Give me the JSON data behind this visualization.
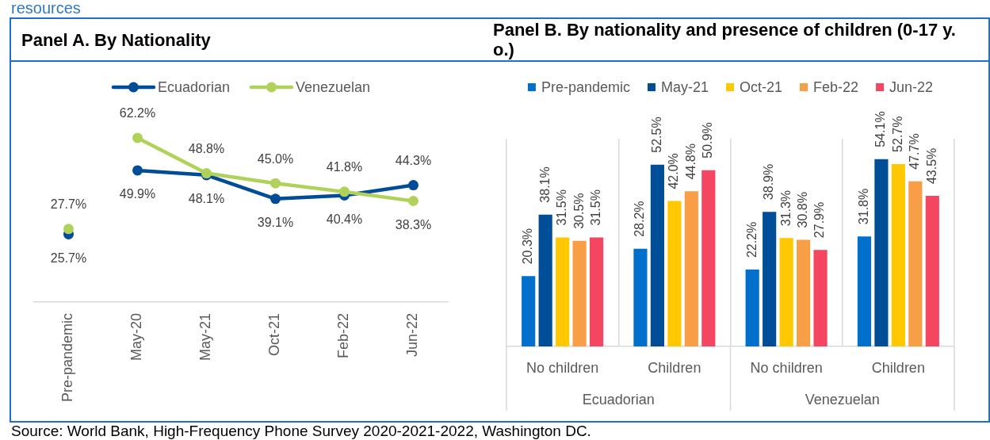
{
  "chart_data": [
    {
      "type": "line",
      "title": "Panel A. By Nationality",
      "categories": [
        "Pre-pandemic",
        "May-20",
        "May-21",
        "Oct-21",
        "Feb-22",
        "Jun-22"
      ],
      "series": [
        {
          "name": "Ecuadorian",
          "color": "#004c97",
          "values": [
            null,
            49.9,
            48.1,
            39.1,
            40.4,
            44.3
          ],
          "value_labels": [
            null,
            "49.9%",
            "48.1%",
            "39.1%",
            "40.4%",
            "44.3%"
          ]
        },
        {
          "name": "Venezuelan",
          "color": "#b0d25a",
          "values": [
            null,
            62.2,
            48.8,
            45.0,
            41.8,
            38.3
          ],
          "value_labels": [
            null,
            "62.2%",
            "48.8%",
            "45.0%",
            "41.8%",
            "38.3%"
          ]
        },
        {
          "type": "scatter",
          "color": "#004c97",
          "x": [
            "Pre-pandemic"
          ],
          "values": [
            25.7
          ],
          "value_labels": [
            "25.7%"
          ]
        },
        {
          "type": "scatter",
          "color": "#b0d25a",
          "x": [
            "Pre-pandemic"
          ],
          "values": [
            27.7
          ],
          "value_labels": [
            "27.7%"
          ]
        }
      ],
      "tick_labels": "x",
      "grid": false,
      "legend": "top",
      "marker": "circle",
      "line_style": "solid",
      "annotations": [
        "resources",
        "Source: World Bank, High-Frequency Phone Survey 2020-2021-2022, Washington DC."
      ]
    },
    {
      "type": "bar",
      "title": "Panel B. By nationality and presence of children (0-17 y. o.)",
      "categories": [
        "No children",
        "Children",
        "No children",
        "Children"
      ],
      "series": [
        {
          "name": "Pre-pandemic",
          "color": "#0070cc",
          "values": [
            20.3,
            28.2,
            22.2,
            31.8
          ],
          "value_labels": [
            "20.3%",
            "28.2%",
            "22.2%",
            "31.8%"
          ]
        },
        {
          "name": "May-21",
          "color": "#004e98",
          "values": [
            38.1,
            52.5,
            38.9,
            54.1
          ],
          "value_labels": [
            "38.1%",
            "52.5%",
            "38.9%",
            "54.1%"
          ]
        },
        {
          "name": "Oct-21",
          "color": "#ffc800",
          "values": [
            31.5,
            42.0,
            31.3,
            52.7
          ],
          "value_labels": [
            "31.5%",
            "42.0%",
            "31.3%",
            "52.7%"
          ]
        },
        {
          "name": "Feb-22",
          "color": "#f79e46",
          "values": [
            30.5,
            44.8,
            30.8,
            47.7
          ],
          "value_labels": [
            "30.5%",
            "44.8%",
            "30.8%",
            "47.7%"
          ]
        },
        {
          "name": "Jun-22",
          "color": "#f44660",
          "values": [
            31.5,
            50.9,
            27.9,
            43.5
          ],
          "value_labels": [
            "31.5%",
            "50.9%",
            "27.9%",
            "43.5%"
          ]
        }
      ],
      "ylim": [
        0,
        60
      ],
      "tick_labels": "x",
      "grid": "x",
      "legend": "top",
      "annotations": [
        "Ecuadorian",
        "Venezuelan"
      ]
    }
  ]
}
